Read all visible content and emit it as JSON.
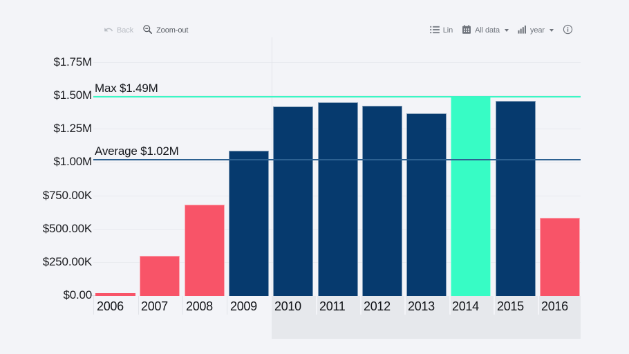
{
  "toolbar": {
    "back_label": "Back",
    "zoom_out_label": "Zoom-out",
    "lin_label": "Lin",
    "all_data_label": "All data",
    "year_label": "year"
  },
  "colors": {
    "navy": "#063a6e",
    "red": "#f85468",
    "teal": "#37fcc5",
    "max_line": "#3bf6c4",
    "avg_line": "#2d6191",
    "grid": "#e8eaef",
    "selection_bg": "#e6e8ec",
    "divider": "#e2e4ea"
  },
  "chart_data": {
    "type": "bar",
    "categories": [
      "2006",
      "2007",
      "2008",
      "2009",
      "2010",
      "2011",
      "2012",
      "2013",
      "2014",
      "2015",
      "2016"
    ],
    "values_musd": [
      0.015,
      0.295,
      0.68,
      1.085,
      1.42,
      1.45,
      1.425,
      1.365,
      1.49,
      1.46,
      0.58
    ],
    "bar_colors": [
      "red",
      "red",
      "red",
      "navy",
      "navy",
      "navy",
      "navy",
      "navy",
      "teal",
      "navy",
      "red"
    ],
    "yticks": [
      {
        "value": 0,
        "label": "$0.00"
      },
      {
        "value": 0.25,
        "label": "$250.00K"
      },
      {
        "value": 0.5,
        "label": "$500.00K"
      },
      {
        "value": 0.75,
        "label": "$750.00K"
      },
      {
        "value": 1.0,
        "label": "$1.00M"
      },
      {
        "value": 1.25,
        "label": "$1.25M"
      },
      {
        "value": 1.5,
        "label": "$1.50M"
      },
      {
        "value": 1.75,
        "label": "$1.75M"
      }
    ],
    "ylim": [
      0,
      1.9
    ],
    "grid": "horizontal",
    "legend": "none",
    "annotations": [
      {
        "name": "max",
        "label": "Max $1.49M",
        "value": 1.49
      },
      {
        "name": "average",
        "label": "Average $1.02M",
        "value": 1.02
      }
    ],
    "selection": {
      "from": "2010",
      "to": "2016"
    }
  }
}
